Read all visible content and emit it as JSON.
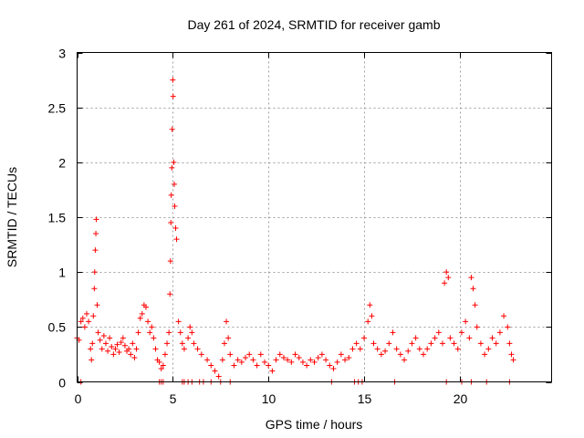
{
  "chart_data": {
    "type": "scatter",
    "title": "Day 261 of 2024, SRMTID for receiver gamb",
    "xlabel": "GPS time / hours",
    "ylabel": "SRMTID / TECUs",
    "xlim": [
      0,
      24.8
    ],
    "ylim": [
      0,
      3
    ],
    "xticks": [
      0,
      5,
      10,
      15,
      20
    ],
    "xtick_labels": [
      "0",
      "5",
      "10",
      "15",
      "20"
    ],
    "yticks": [
      0,
      0.5,
      1,
      1.5,
      2,
      2.5,
      3
    ],
    "ytick_labels": [
      "0",
      "0.5",
      "1",
      "1.5",
      "2",
      "2.5",
      "3"
    ],
    "grid": true,
    "marker": "plus",
    "series_color": "#ff0000",
    "series": [
      {
        "name": "SRMTID",
        "points": [
          [
            0.0,
            0.4
          ],
          [
            0.1,
            0.38
          ],
          [
            0.2,
            0.55
          ],
          [
            0.3,
            0.58
          ],
          [
            0.4,
            0.5
          ],
          [
            0.5,
            0.62
          ],
          [
            0.6,
            0.55
          ],
          [
            0.7,
            0.3
          ],
          [
            0.75,
            0.2
          ],
          [
            0.8,
            0.35
          ],
          [
            0.85,
            0.6
          ],
          [
            0.9,
            0.85
          ],
          [
            0.92,
            1.0
          ],
          [
            0.95,
            1.2
          ],
          [
            0.98,
            1.35
          ],
          [
            1.0,
            1.48
          ],
          [
            1.05,
            0.7
          ],
          [
            1.1,
            0.45
          ],
          [
            1.2,
            0.38
          ],
          [
            1.3,
            0.3
          ],
          [
            1.4,
            0.42
          ],
          [
            1.5,
            0.35
          ],
          [
            1.6,
            0.28
          ],
          [
            1.7,
            0.4
          ],
          [
            1.8,
            0.32
          ],
          [
            1.9,
            0.25
          ],
          [
            2.0,
            0.3
          ],
          [
            2.1,
            0.34
          ],
          [
            2.2,
            0.27
          ],
          [
            2.3,
            0.36
          ],
          [
            2.4,
            0.4
          ],
          [
            2.5,
            0.33
          ],
          [
            2.6,
            0.28
          ],
          [
            2.7,
            0.3
          ],
          [
            2.8,
            0.25
          ],
          [
            2.9,
            0.35
          ],
          [
            3.0,
            0.22
          ],
          [
            3.1,
            0.3
          ],
          [
            3.2,
            0.45
          ],
          [
            3.3,
            0.58
          ],
          [
            3.4,
            0.62
          ],
          [
            3.5,
            0.7
          ],
          [
            3.6,
            0.68
          ],
          [
            3.7,
            0.55
          ],
          [
            3.8,
            0.45
          ],
          [
            3.9,
            0.5
          ],
          [
            4.0,
            0.4
          ],
          [
            4.1,
            0.3
          ],
          [
            4.2,
            0.2
          ],
          [
            4.3,
            0.18
          ],
          [
            4.4,
            0.12
          ],
          [
            4.5,
            0.15
          ],
          [
            4.6,
            0.25
          ],
          [
            4.7,
            0.35
          ],
          [
            4.8,
            0.45
          ],
          [
            4.85,
            0.8
          ],
          [
            4.88,
            1.1
          ],
          [
            4.9,
            1.45
          ],
          [
            4.92,
            1.7
          ],
          [
            4.95,
            1.95
          ],
          [
            4.97,
            2.3
          ],
          [
            5.0,
            2.75
          ],
          [
            5.02,
            2.6
          ],
          [
            5.05,
            2.0
          ],
          [
            5.08,
            1.8
          ],
          [
            5.1,
            1.6
          ],
          [
            5.15,
            1.4
          ],
          [
            5.2,
            1.3
          ],
          [
            5.3,
            0.55
          ],
          [
            5.4,
            0.45
          ],
          [
            5.5,
            0.35
          ],
          [
            5.6,
            0.3
          ],
          [
            5.8,
            0.4
          ],
          [
            5.9,
            0.5
          ],
          [
            6.0,
            0.45
          ],
          [
            6.1,
            0.35
          ],
          [
            6.3,
            0.3
          ],
          [
            6.5,
            0.25
          ],
          [
            6.8,
            0.2
          ],
          [
            7.0,
            0.15
          ],
          [
            7.2,
            0.1
          ],
          [
            7.4,
            0.05
          ],
          [
            7.6,
            0.2
          ],
          [
            7.7,
            0.35
          ],
          [
            7.8,
            0.55
          ],
          [
            7.9,
            0.4
          ],
          [
            8.0,
            0.25
          ],
          [
            8.2,
            0.15
          ],
          [
            8.4,
            0.2
          ],
          [
            8.6,
            0.18
          ],
          [
            8.8,
            0.22
          ],
          [
            9.0,
            0.25
          ],
          [
            9.2,
            0.2
          ],
          [
            9.4,
            0.15
          ],
          [
            9.6,
            0.25
          ],
          [
            9.8,
            0.18
          ],
          [
            10.0,
            0.15
          ],
          [
            10.2,
            0.1
          ],
          [
            10.4,
            0.2
          ],
          [
            10.6,
            0.25
          ],
          [
            10.8,
            0.22
          ],
          [
            11.0,
            0.2
          ],
          [
            11.2,
            0.18
          ],
          [
            11.4,
            0.25
          ],
          [
            11.6,
            0.22
          ],
          [
            11.8,
            0.18
          ],
          [
            12.0,
            0.15
          ],
          [
            12.2,
            0.2
          ],
          [
            12.4,
            0.18
          ],
          [
            12.6,
            0.22
          ],
          [
            12.8,
            0.25
          ],
          [
            13.0,
            0.2
          ],
          [
            13.2,
            0.15
          ],
          [
            13.4,
            0.12
          ],
          [
            13.6,
            0.18
          ],
          [
            13.8,
            0.25
          ],
          [
            14.0,
            0.2
          ],
          [
            14.2,
            0.22
          ],
          [
            14.4,
            0.3
          ],
          [
            14.6,
            0.35
          ],
          [
            14.8,
            0.3
          ],
          [
            15.0,
            0.4
          ],
          [
            15.2,
            0.55
          ],
          [
            15.3,
            0.7
          ],
          [
            15.4,
            0.6
          ],
          [
            15.5,
            0.35
          ],
          [
            15.7,
            0.3
          ],
          [
            15.9,
            0.25
          ],
          [
            16.1,
            0.28
          ],
          [
            16.3,
            0.35
          ],
          [
            16.5,
            0.45
          ],
          [
            16.7,
            0.3
          ],
          [
            16.9,
            0.25
          ],
          [
            17.1,
            0.2
          ],
          [
            17.3,
            0.28
          ],
          [
            17.5,
            0.35
          ],
          [
            17.7,
            0.4
          ],
          [
            17.9,
            0.3
          ],
          [
            18.1,
            0.25
          ],
          [
            18.3,
            0.3
          ],
          [
            18.5,
            0.35
          ],
          [
            18.7,
            0.4
          ],
          [
            18.9,
            0.45
          ],
          [
            19.1,
            0.35
          ],
          [
            19.2,
            0.9
          ],
          [
            19.3,
            1.0
          ],
          [
            19.4,
            0.95
          ],
          [
            19.5,
            0.4
          ],
          [
            19.7,
            0.35
          ],
          [
            19.9,
            0.3
          ],
          [
            20.1,
            0.45
          ],
          [
            20.3,
            0.55
          ],
          [
            20.5,
            0.4
          ],
          [
            20.6,
            0.95
          ],
          [
            20.7,
            0.85
          ],
          [
            20.8,
            0.7
          ],
          [
            20.9,
            0.5
          ],
          [
            21.1,
            0.35
          ],
          [
            21.3,
            0.25
          ],
          [
            21.5,
            0.3
          ],
          [
            21.7,
            0.4
          ],
          [
            21.9,
            0.35
          ],
          [
            22.1,
            0.45
          ],
          [
            22.3,
            0.6
          ],
          [
            22.5,
            0.5
          ],
          [
            22.6,
            0.35
          ],
          [
            22.7,
            0.25
          ],
          [
            22.8,
            0.2
          ]
        ],
        "zero_points": [
          0.2,
          4.3,
          4.4,
          4.5,
          5.5,
          5.6,
          5.8,
          6.0,
          6.4,
          6.6,
          7.0,
          7.5,
          8.0,
          13.3,
          14.5,
          14.7,
          14.9,
          16.6,
          19.3,
          20.1,
          20.6,
          21.4,
          22.6
        ]
      }
    ]
  }
}
